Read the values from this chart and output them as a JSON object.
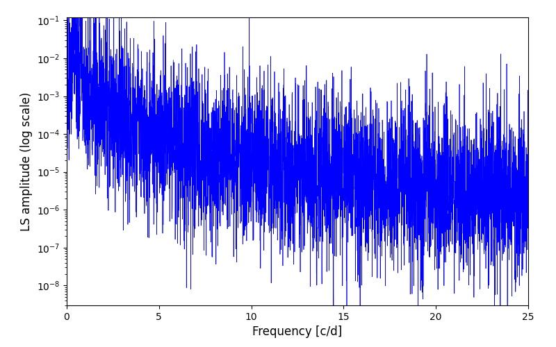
{
  "xlabel": "Frequency [c/d]",
  "ylabel": "LS amplitude (log scale)",
  "xlim": [
    0,
    25
  ],
  "ylim_min": 3e-09,
  "ylim_max": 0.12,
  "line_color": "#0000ff",
  "line_width": 0.5,
  "background_color": "#ffffff",
  "figsize": [
    8.0,
    5.0
  ],
  "dpi": 100,
  "freq_min": 0.0,
  "freq_max": 25.0,
  "n_points": 5000,
  "seed": 77,
  "envelope_peak": 0.012,
  "envelope_decay_exp": 2.2,
  "noise_sigma": 2.5
}
